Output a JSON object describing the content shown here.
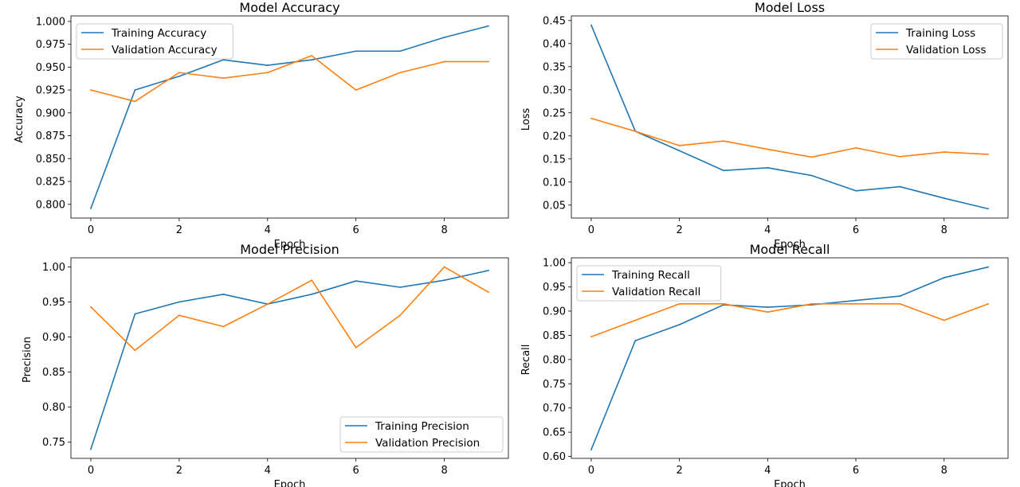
{
  "chart_data": [
    {
      "type": "line",
      "title": "Model Accuracy",
      "xlabel": "Epoch",
      "ylabel": "Accuracy",
      "x": [
        0,
        1,
        2,
        3,
        4,
        5,
        6,
        7,
        8,
        9
      ],
      "xlim": [
        -0.45,
        9.45
      ],
      "ylim": [
        0.785,
        1.006
      ],
      "xticks": [
        "0",
        "2",
        "4",
        "6",
        "8"
      ],
      "yticks": [
        "0.800",
        "0.825",
        "0.850",
        "0.875",
        "0.900",
        "0.925",
        "0.950",
        "0.975",
        "1.000"
      ],
      "legend_placement": "upper-left",
      "grid": false,
      "series": [
        {
          "name": "Training Accuracy",
          "color": "#1f77b4",
          "values": [
            0.7955,
            0.925,
            0.94,
            0.958,
            0.952,
            0.958,
            0.9675,
            0.9675,
            0.9825,
            0.995
          ]
        },
        {
          "name": "Validation Accuracy",
          "color": "#ff7f0e",
          "values": [
            0.925,
            0.9125,
            0.944,
            0.938,
            0.944,
            0.9625,
            0.925,
            0.944,
            0.956,
            0.956
          ]
        }
      ]
    },
    {
      "type": "line",
      "title": "Model Loss",
      "xlabel": "Epoch",
      "ylabel": "Loss",
      "x": [
        0,
        1,
        2,
        3,
        4,
        5,
        6,
        7,
        8,
        9
      ],
      "xlim": [
        -0.45,
        9.45
      ],
      "ylim": [
        0.022,
        0.46
      ],
      "xticks": [
        "0",
        "2",
        "4",
        "6",
        "8"
      ],
      "yticks": [
        "0.05",
        "0.10",
        "0.15",
        "0.20",
        "0.25",
        "0.30",
        "0.35",
        "0.40",
        "0.45"
      ],
      "legend_placement": "upper-right",
      "grid": false,
      "series": [
        {
          "name": "Training Loss",
          "color": "#1f77b4",
          "values": [
            0.44,
            0.21,
            0.168,
            0.125,
            0.131,
            0.114,
            0.081,
            0.09,
            0.065,
            0.042
          ]
        },
        {
          "name": "Validation Loss",
          "color": "#ff7f0e",
          "values": [
            0.238,
            0.21,
            0.179,
            0.189,
            0.171,
            0.154,
            0.174,
            0.155,
            0.165,
            0.16
          ]
        }
      ]
    },
    {
      "type": "line",
      "title": "Model Precision",
      "xlabel": "Epoch",
      "ylabel": "Precision",
      "x": [
        0,
        1,
        2,
        3,
        4,
        5,
        6,
        7,
        8,
        9
      ],
      "xlim": [
        -0.45,
        9.45
      ],
      "ylim": [
        0.727,
        1.013
      ],
      "xticks": [
        "0",
        "2",
        "4",
        "6",
        "8"
      ],
      "yticks": [
        "0.75",
        "0.80",
        "0.85",
        "0.90",
        "0.95",
        "1.00"
      ],
      "legend_placement": "lower-right",
      "grid": false,
      "series": [
        {
          "name": "Training Precision",
          "color": "#1f77b4",
          "values": [
            0.74,
            0.933,
            0.95,
            0.961,
            0.947,
            0.961,
            0.98,
            0.971,
            0.981,
            0.995
          ]
        },
        {
          "name": "Validation Precision",
          "color": "#ff7f0e",
          "values": [
            0.943,
            0.881,
            0.931,
            0.915,
            0.947,
            0.981,
            0.885,
            0.931,
            1.0,
            0.964
          ]
        }
      ]
    },
    {
      "type": "line",
      "title": "Model Recall",
      "xlabel": "Epoch",
      "ylabel": "Recall",
      "x": [
        0,
        1,
        2,
        3,
        4,
        5,
        6,
        7,
        8,
        9
      ],
      "xlim": [
        -0.45,
        9.45
      ],
      "ylim": [
        0.596,
        1.01
      ],
      "xticks": [
        "0",
        "2",
        "4",
        "6",
        "8"
      ],
      "yticks": [
        "0.60",
        "0.65",
        "0.70",
        "0.75",
        "0.80",
        "0.85",
        "0.90",
        "0.95",
        "1.00"
      ],
      "legend_placement": "upper-left",
      "grid": false,
      "series": [
        {
          "name": "Training Recall",
          "color": "#1f77b4",
          "values": [
            0.614,
            0.839,
            0.872,
            0.913,
            0.908,
            0.913,
            0.922,
            0.931,
            0.969,
            0.991
          ]
        },
        {
          "name": "Validation Recall",
          "color": "#ff7f0e",
          "values": [
            0.847,
            0.881,
            0.915,
            0.915,
            0.898,
            0.915,
            0.915,
            0.915,
            0.881,
            0.915
          ]
        }
      ]
    }
  ]
}
